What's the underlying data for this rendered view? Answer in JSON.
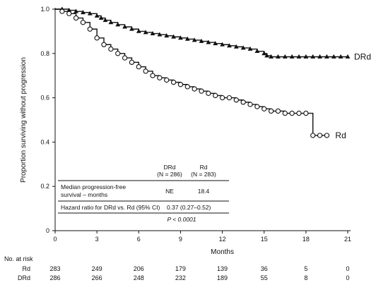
{
  "chart_data": {
    "type": "line",
    "subtype": "kaplan-meier",
    "xlabel": "Months",
    "ylabel": "Proportion surviving without progression",
    "xlim": [
      0,
      21
    ],
    "ylim": [
      0,
      1.0
    ],
    "x_ticks": [
      "0",
      "3",
      "6",
      "9",
      "12",
      "15",
      "18",
      "21"
    ],
    "y_ticks": [
      "0",
      "0.2",
      "0.4",
      "0.6",
      "0.8",
      "1.0"
    ],
    "grid": false,
    "series": [
      {
        "name": "DRd",
        "color": "#111111",
        "marker": "triangle",
        "x": [
          0,
          0.5,
          1,
          1.5,
          2,
          2.5,
          3,
          3.3,
          3.6,
          4,
          4.5,
          5,
          5.5,
          6,
          6.5,
          7,
          7.5,
          8,
          8.5,
          9,
          9.5,
          10,
          10.5,
          11,
          11.5,
          12,
          12.5,
          13,
          13.5,
          14,
          14.5,
          15,
          15.2,
          15.5,
          16,
          16.5,
          17,
          17.5,
          18,
          18.5,
          19,
          19.5,
          20,
          20.5,
          21
        ],
        "y": [
          1.0,
          1.0,
          0.995,
          0.99,
          0.985,
          0.98,
          0.97,
          0.96,
          0.95,
          0.94,
          0.93,
          0.92,
          0.91,
          0.9,
          0.895,
          0.89,
          0.885,
          0.88,
          0.875,
          0.87,
          0.865,
          0.86,
          0.855,
          0.85,
          0.845,
          0.84,
          0.835,
          0.83,
          0.825,
          0.82,
          0.81,
          0.8,
          0.79,
          0.785,
          0.785,
          0.785,
          0.785,
          0.785,
          0.785,
          0.785,
          0.785,
          0.785,
          0.785,
          0.785,
          0.785
        ]
      },
      {
        "name": "Rd",
        "color": "#111111",
        "marker": "circle",
        "x": [
          0,
          0.5,
          1,
          1.5,
          2,
          2.5,
          3,
          3.5,
          4,
          4.5,
          5,
          5.5,
          6,
          6.5,
          7,
          7.5,
          8,
          8.5,
          9,
          9.5,
          10,
          10.5,
          11,
          11.5,
          12,
          12.5,
          13,
          13.5,
          14,
          14.5,
          15,
          15.5,
          16,
          16.5,
          17,
          17.5,
          18,
          18.5,
          19,
          19.5
        ],
        "y": [
          1.0,
          0.99,
          0.98,
          0.96,
          0.94,
          0.91,
          0.87,
          0.84,
          0.82,
          0.8,
          0.78,
          0.76,
          0.74,
          0.72,
          0.7,
          0.69,
          0.68,
          0.67,
          0.66,
          0.65,
          0.64,
          0.63,
          0.62,
          0.61,
          0.6,
          0.6,
          0.59,
          0.58,
          0.57,
          0.56,
          0.55,
          0.54,
          0.54,
          0.53,
          0.53,
          0.53,
          0.53,
          0.43,
          0.43,
          0.43
        ]
      }
    ],
    "curve_labels": {
      "drd": "DRd",
      "rd": "Rd"
    },
    "summary_table": {
      "col_headers": [
        [
          "DRd",
          "(N = 286)"
        ],
        [
          "Rd",
          "(N = 283)"
        ]
      ],
      "rows": [
        {
          "label_lines": [
            "Median progression-free",
            "survival – months"
          ],
          "values": [
            "NE",
            "18.4"
          ]
        },
        {
          "label_lines": [
            "Hazard ratio for DRd vs. Rd (95% CI)"
          ],
          "values": [
            "0.37 (0.27–0.52)"
          ]
        }
      ],
      "p_value": "P < 0.0001"
    },
    "at_risk": {
      "header": "No. at risk",
      "times": [
        0,
        3,
        6,
        9,
        12,
        15,
        18,
        21
      ],
      "rows": [
        {
          "label": "Rd",
          "values": [
            "283",
            "249",
            "206",
            "179",
            "139",
            "36",
            "5",
            "0"
          ]
        },
        {
          "label": "DRd",
          "values": [
            "286",
            "266",
            "248",
            "232",
            "189",
            "55",
            "8",
            "0"
          ]
        }
      ]
    }
  }
}
